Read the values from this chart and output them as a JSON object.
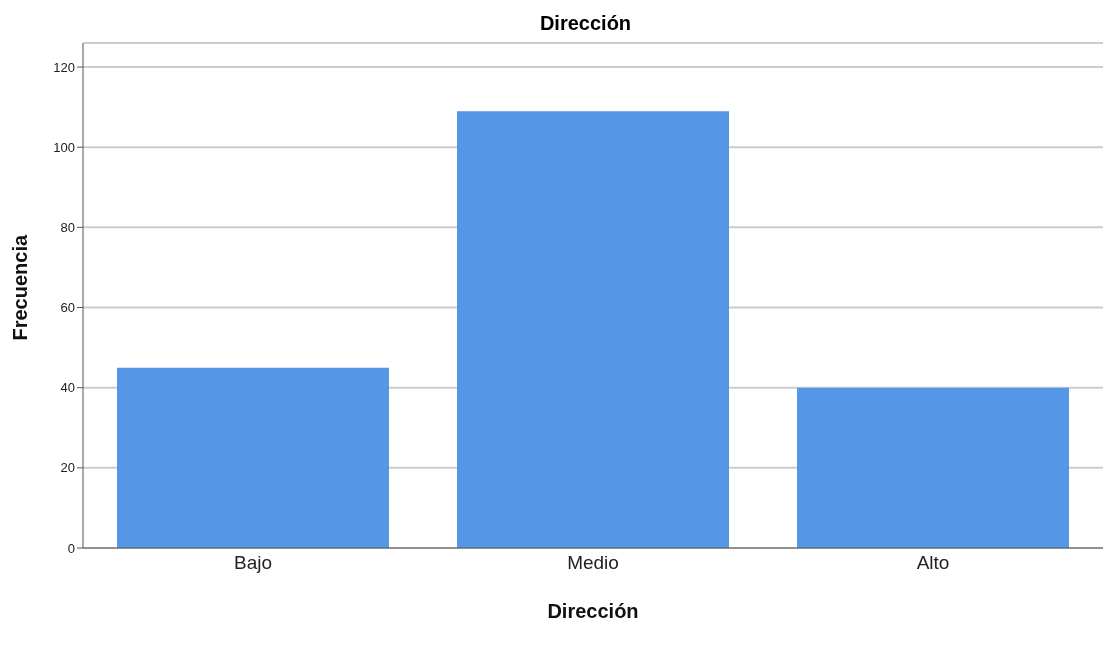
{
  "chart_data": {
    "type": "bar",
    "title": "Dirección",
    "xlabel": "Dirección",
    "ylabel": "Frecuencia",
    "categories": [
      "Bajo",
      "Medio",
      "Alto"
    ],
    "values": [
      45,
      109,
      40
    ],
    "color": "#5596e6",
    "ylim": [
      0,
      126
    ],
    "yticks": [
      0,
      20,
      40,
      60,
      80,
      100,
      120
    ],
    "grid": "y"
  }
}
